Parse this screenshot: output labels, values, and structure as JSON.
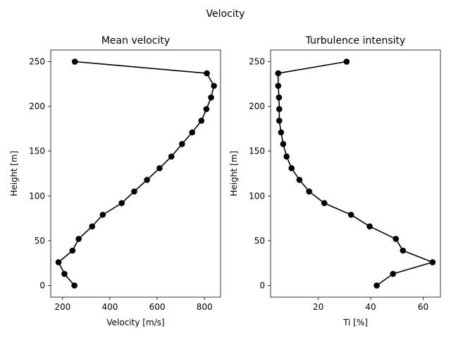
{
  "figure": {
    "suptitle": "Velocity"
  },
  "chart_data": [
    {
      "type": "line",
      "title": "Mean velocity",
      "xlabel": "Velocity [m/s]",
      "ylabel": "Height [m]",
      "xlim": [
        150,
        868
      ],
      "ylim": [
        -13,
        263
      ],
      "xticks": [
        200,
        400,
        600,
        800
      ],
      "yticks": [
        0,
        50,
        100,
        150,
        200,
        250
      ],
      "grid": false,
      "color": "#000000",
      "series": [
        {
          "y": [
            0,
            13,
            26,
            39,
            52,
            66,
            79,
            92,
            105,
            118,
            131,
            144,
            158,
            171,
            184,
            197,
            210,
            223,
            237,
            250
          ],
          "x": [
            250,
            208,
            183,
            242,
            268,
            325,
            370,
            450,
            503,
            557,
            610,
            660,
            705,
            748,
            787,
            808,
            828,
            840,
            810,
            252
          ]
        }
      ]
    },
    {
      "type": "line",
      "title": "Turbulence intensity",
      "xlabel": "Ti [%]",
      "ylabel": "Height [m]",
      "xlim": [
        1.8,
        66.6
      ],
      "ylim": [
        -13,
        263
      ],
      "xticks": [
        20,
        40,
        60
      ],
      "yticks": [
        0,
        50,
        100,
        150,
        200,
        250
      ],
      "grid": false,
      "color": "#000000",
      "series": [
        {
          "y": [
            0,
            13,
            26,
            39,
            52,
            66,
            79,
            92,
            105,
            118,
            131,
            144,
            158,
            171,
            184,
            197,
            210,
            223,
            237,
            250
          ],
          "x": [
            42.3,
            48.5,
            63.6,
            52.3,
            49.6,
            39.6,
            32.5,
            22.3,
            16.5,
            12.8,
            9.8,
            7.9,
            6.6,
            5.8,
            5.1,
            5.1,
            5.0,
            4.7,
            4.7,
            30.8
          ]
        }
      ]
    }
  ]
}
